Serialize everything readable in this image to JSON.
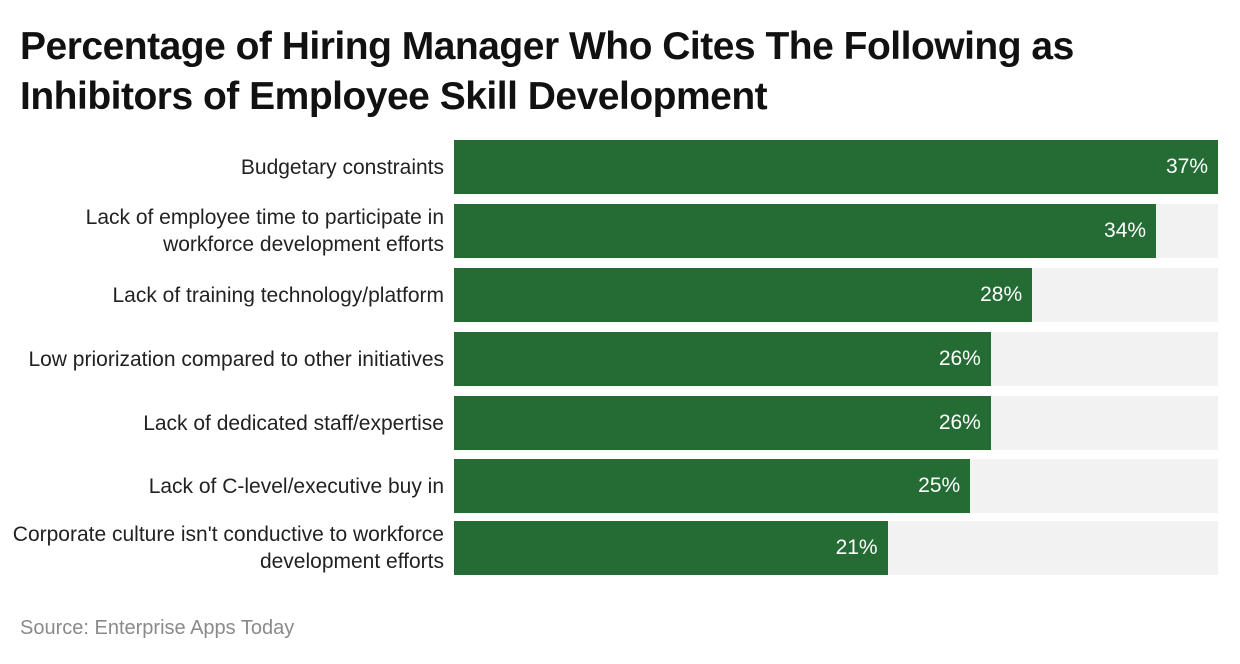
{
  "chart_data": {
    "type": "bar",
    "orientation": "horizontal",
    "title": "Percentage of Hiring Manager Who Cites The Following as Inhibitors of Employee Skill Development",
    "xlabel": "",
    "ylabel": "",
    "xlim": [
      0,
      37
    ],
    "grid": false,
    "legend": null,
    "categories": [
      "Budgetary constraints",
      "Lack of employee time to participate in workforce development efforts",
      "Lack of training technology/platform",
      "Low priorization compared to other initiatives",
      "Lack of dedicated staff/expertise",
      "Lack of C-level/executive buy in",
      "Corporate culture isn't conductive to workforce development efforts"
    ],
    "values": [
      37,
      34,
      28,
      26,
      26,
      25,
      21
    ],
    "value_labels": [
      "37%",
      "34%",
      "28%",
      "26%",
      "26%",
      "25%",
      "21%"
    ],
    "bar_color": "#246b34",
    "track_color": "#f2f2f2",
    "source": "Source: Enterprise Apps Today"
  },
  "header": {
    "title": "Percentage of Hiring Manager Who Cites The Following as Inhibitors of Employee Skill Development"
  },
  "rows": [
    {
      "label": "Budgetary constraints",
      "value": 37,
      "value_label": "37%"
    },
    {
      "label": "Lack of employee time to participate in workforce development efforts",
      "value": 34,
      "value_label": "34%"
    },
    {
      "label": "Lack of training technology/platform",
      "value": 28,
      "value_label": "28%"
    },
    {
      "label": "Low priorization compared to other initiatives",
      "value": 26,
      "value_label": "26%"
    },
    {
      "label": "Lack of dedicated staff/expertise",
      "value": 26,
      "value_label": "26%"
    },
    {
      "label": "Lack of C-level/executive buy in",
      "value": 25,
      "value_label": "25%"
    },
    {
      "label": "Corporate culture isn't conductive to workforce development efforts",
      "value": 21,
      "value_label": "21%"
    }
  ],
  "footer": {
    "source": "Source: Enterprise Apps Today"
  }
}
